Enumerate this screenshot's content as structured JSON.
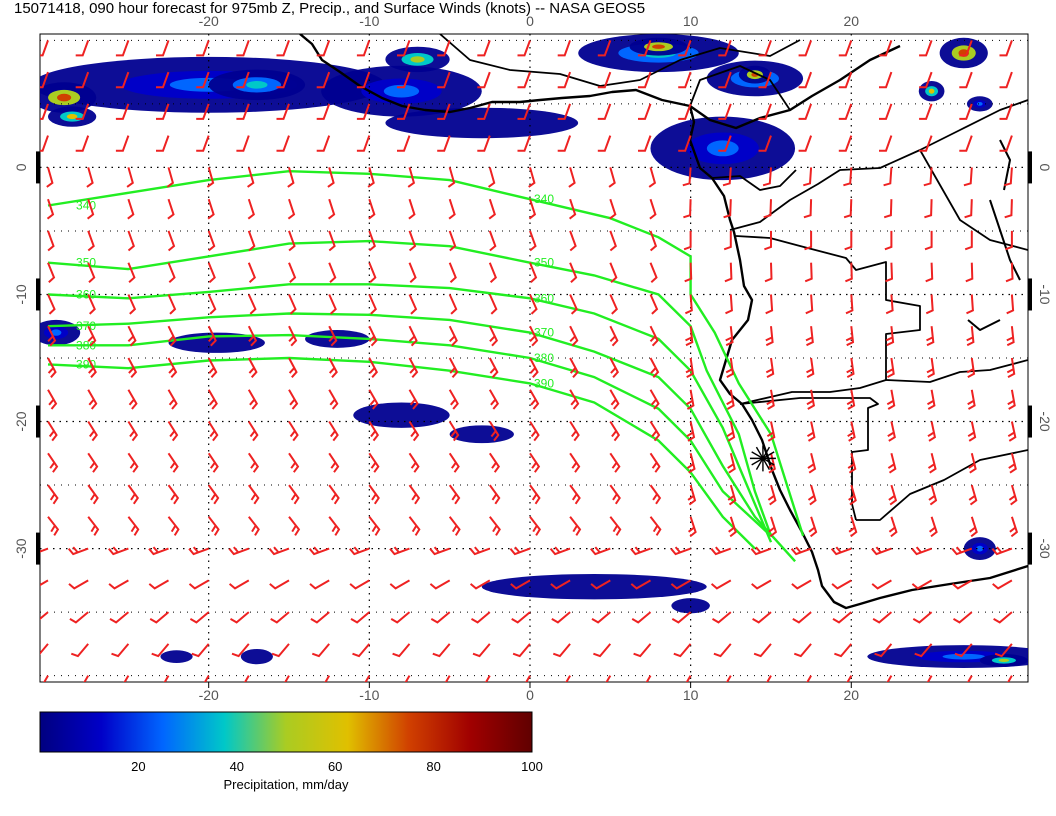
{
  "title": "15071418, 090 hour forecast for 975mb Z, Precip., and Surface Winds (knots) -- NASA GEOS5",
  "map": {
    "lon_range": [
      -30.5,
      31
    ],
    "lat_range": [
      -40.5,
      10.5
    ],
    "lon_ticks": [
      -20,
      -10,
      0,
      10,
      20
    ],
    "lat_ticks": [
      0,
      -10,
      -20,
      -30
    ],
    "lon_tick_labels": [
      "-20",
      "-10",
      "0",
      "10",
      "20"
    ],
    "lat_tick_labels": [
      "0",
      "-10",
      "-20",
      "-30"
    ],
    "grid": "dotted",
    "colors": {
      "contour": "#22ee22",
      "wind_barb": "#ee2222",
      "coast": "#000000",
      "grid": "#000000"
    }
  },
  "contours": {
    "labels": [
      "340",
      "350",
      "360",
      "370",
      "380",
      "390"
    ],
    "levels": [
      {
        "label": "340",
        "points": [
          [
            -30,
            -3
          ],
          [
            -25,
            -2
          ],
          [
            -20,
            -1
          ],
          [
            -15,
            -0.3
          ],
          [
            -10,
            -0.5
          ],
          [
            -5,
            -1
          ],
          [
            0,
            -2.5
          ],
          [
            5,
            -4
          ],
          [
            8,
            -5.5
          ],
          [
            10,
            -7
          ],
          [
            10,
            -10
          ],
          [
            11.5,
            -13
          ],
          [
            13,
            -17
          ],
          [
            15,
            -21
          ],
          [
            16,
            -25
          ],
          [
            17,
            -29
          ]
        ]
      },
      {
        "label": "350",
        "points": [
          [
            -30,
            -7.5
          ],
          [
            -25,
            -8
          ],
          [
            -20,
            -7
          ],
          [
            -15,
            -6
          ],
          [
            -10,
            -5.8
          ],
          [
            -5,
            -6.2
          ],
          [
            0,
            -7.5
          ],
          [
            4,
            -8.5
          ],
          [
            8,
            -10
          ],
          [
            10,
            -12.5
          ],
          [
            11,
            -16
          ],
          [
            13,
            -21
          ],
          [
            14,
            -25.5
          ],
          [
            15,
            -29
          ]
        ]
      },
      {
        "label": "360",
        "points": [
          [
            -30,
            -10
          ],
          [
            -25,
            -10.3
          ],
          [
            -20,
            -9.8
          ],
          [
            -15,
            -9.2
          ],
          [
            -10,
            -9.2
          ],
          [
            -5,
            -9.5
          ],
          [
            0,
            -10.3
          ],
          [
            4,
            -11.5
          ],
          [
            8,
            -13.5
          ],
          [
            10,
            -16
          ],
          [
            12,
            -20.5
          ],
          [
            13.5,
            -25
          ],
          [
            15,
            -29.5
          ]
        ]
      },
      {
        "label": "370",
        "points": [
          [
            -30,
            -12.5
          ],
          [
            -25,
            -12.3
          ],
          [
            -20,
            -11.8
          ],
          [
            -15,
            -11.5
          ],
          [
            -10,
            -11.6
          ],
          [
            -5,
            -12
          ],
          [
            0,
            -13
          ],
          [
            4,
            -14.5
          ],
          [
            8,
            -16.5
          ],
          [
            10,
            -19
          ],
          [
            12,
            -23.5
          ],
          [
            14,
            -27.5
          ],
          [
            16.5,
            -31
          ]
        ]
      },
      {
        "label": "380",
        "points": [
          [
            -30,
            -14
          ],
          [
            -25,
            -14
          ],
          [
            -20,
            -13.3
          ],
          [
            -15,
            -13.2
          ],
          [
            -10,
            -13.5
          ],
          [
            -5,
            -14
          ],
          [
            0,
            -15
          ],
          [
            4,
            -16.5
          ],
          [
            8,
            -19
          ],
          [
            10,
            -21.5
          ],
          [
            12,
            -25.5
          ],
          [
            15,
            -29
          ]
        ]
      },
      {
        "label": "390",
        "points": [
          [
            -30,
            -15.5
          ],
          [
            -25,
            -15.8
          ],
          [
            -20,
            -15.2
          ],
          [
            -15,
            -15
          ],
          [
            -10,
            -15.3
          ],
          [
            -5,
            -16
          ],
          [
            0,
            -17
          ],
          [
            4,
            -18.5
          ],
          [
            8,
            -21.5
          ],
          [
            10,
            -24
          ],
          [
            12,
            -27.5
          ],
          [
            14,
            -30
          ]
        ]
      }
    ]
  },
  "precip_cells": [
    {
      "lon": -20,
      "lat": 6.5,
      "rx": 11,
      "ry": 2.2,
      "level": 30
    },
    {
      "lon": -29,
      "lat": 5.5,
      "rx": 2,
      "ry": 1.2,
      "level": 85
    },
    {
      "lon": -28.5,
      "lat": 4,
      "rx": 1.5,
      "ry": 0.8,
      "level": 70
    },
    {
      "lon": -17,
      "lat": 6.5,
      "rx": 3,
      "ry": 1.2,
      "level": 45
    },
    {
      "lon": -8,
      "lat": 6,
      "rx": 5,
      "ry": 2,
      "level": 35
    },
    {
      "lon": -7,
      "lat": 8.5,
      "rx": 2,
      "ry": 1,
      "level": 60
    },
    {
      "lon": -3,
      "lat": 3.5,
      "rx": 6,
      "ry": 1.2,
      "level": 25
    },
    {
      "lon": 8,
      "lat": 9,
      "rx": 5,
      "ry": 1.5,
      "level": 40
    },
    {
      "lon": 8,
      "lat": 9.5,
      "rx": 1.8,
      "ry": 0.7,
      "level": 80
    },
    {
      "lon": 14,
      "lat": 7,
      "rx": 3,
      "ry": 1.4,
      "level": 45
    },
    {
      "lon": 14,
      "lat": 7.3,
      "rx": 1,
      "ry": 0.7,
      "level": 85
    },
    {
      "lon": 12,
      "lat": 1.5,
      "rx": 4.5,
      "ry": 2.5,
      "level": 35
    },
    {
      "lon": 27,
      "lat": 9,
      "rx": 1.5,
      "ry": 1.2,
      "level": 75
    },
    {
      "lon": 25,
      "lat": 6,
      "rx": 0.8,
      "ry": 0.8,
      "level": 65
    },
    {
      "lon": 28,
      "lat": 5,
      "rx": 0.8,
      "ry": 0.6,
      "level": 30
    },
    {
      "lon": -29.5,
      "lat": -13,
      "rx": 1.5,
      "ry": 1,
      "level": 30
    },
    {
      "lon": -19.5,
      "lat": -13.8,
      "rx": 3,
      "ry": 0.8,
      "level": 25
    },
    {
      "lon": -12,
      "lat": -13.5,
      "rx": 2,
      "ry": 0.7,
      "level": 20
    },
    {
      "lon": -8,
      "lat": -19.5,
      "rx": 3,
      "ry": 1,
      "level": 20
    },
    {
      "lon": -3,
      "lat": -21,
      "rx": 2,
      "ry": 0.7,
      "level": 20
    },
    {
      "lon": 4,
      "lat": -33,
      "rx": 7,
      "ry": 1,
      "level": 20
    },
    {
      "lon": 10,
      "lat": -34.5,
      "rx": 1.2,
      "ry": 0.6,
      "level": 20
    },
    {
      "lon": 27,
      "lat": -38.5,
      "rx": 6,
      "ry": 0.9,
      "level": 35
    },
    {
      "lon": 29.5,
      "lat": -38.8,
      "rx": 1.5,
      "ry": 0.5,
      "level": 55
    },
    {
      "lon": 28,
      "lat": -30,
      "rx": 1,
      "ry": 0.9,
      "level": 30
    },
    {
      "lon": -22,
      "lat": -38.5,
      "rx": 1,
      "ry": 0.5,
      "level": 15
    },
    {
      "lon": -17,
      "lat": -38.5,
      "rx": 1,
      "ry": 0.6,
      "level": 15
    }
  ],
  "marker": {
    "lon": 14.5,
    "lat": -22.9,
    "symbol": "asterisk"
  },
  "colorbar": {
    "range": [
      0,
      100
    ],
    "ticks": [
      20,
      40,
      60,
      80,
      100
    ],
    "tick_labels": [
      "20",
      "40",
      "60",
      "80",
      "100"
    ],
    "label": "Precipitation, mm/day",
    "stops": [
      "#000080",
      "#0000c8",
      "#0066ff",
      "#00c8c8",
      "#aacc22",
      "#e0c000",
      "#d04000",
      "#a00000",
      "#600000"
    ]
  }
}
